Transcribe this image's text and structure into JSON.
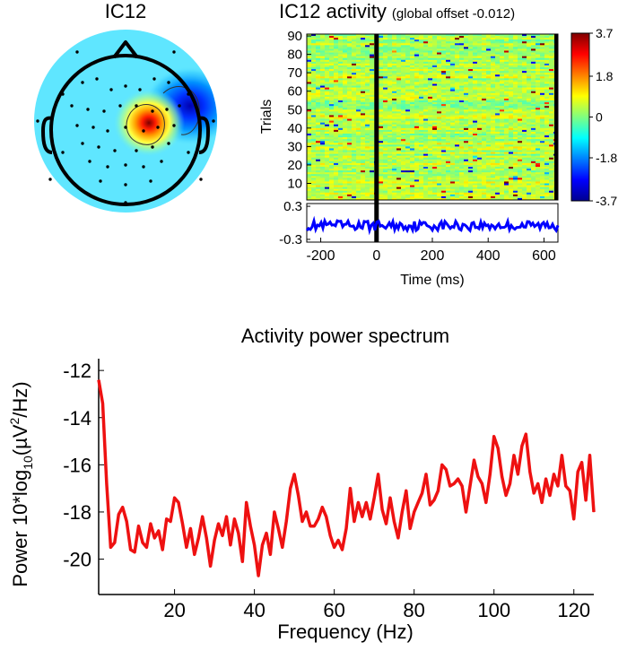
{
  "topomap": {
    "title": "IC12",
    "colormap": "jet"
  },
  "erpimage": {
    "title": "IC12 activity",
    "subtitle": "(global offset -0.012)",
    "ylabel": "Trials",
    "xlabel": "Time (ms)",
    "xlim": [
      -250,
      650
    ],
    "ylim": [
      1,
      91
    ],
    "yticks": [
      "90",
      "80",
      "70",
      "60",
      "50",
      "40",
      "30",
      "20",
      "10"
    ],
    "xticks": [
      "-200",
      "0",
      "200",
      "400",
      "600"
    ],
    "colorbar_ticks": [
      "3.7",
      "1.8",
      "0",
      "-1.8",
      "-3.7"
    ],
    "clim": [
      -3.7,
      3.7
    ],
    "erp_ticks": [
      "0.3",
      "-0.3"
    ],
    "erp_ylim": [
      -0.35,
      0.35
    ],
    "event_time": 0
  },
  "chart_data": {
    "type": "line",
    "title": "Activity power spectrum",
    "xlabel": "Frequency (Hz)",
    "ylabel_prefix": "Power 10*log",
    "ylabel_sub": "10",
    "ylabel_mid": "(µV",
    "ylabel_sup": "2",
    "ylabel_suffix": "/Hz)",
    "xlim": [
      1,
      125
    ],
    "ylim": [
      -21.5,
      -11.5
    ],
    "xticks": [
      "20",
      "40",
      "60",
      "80",
      "100",
      "120"
    ],
    "yticks": [
      "-12",
      "-14",
      "-16",
      "-18",
      "-20"
    ],
    "line_color": "#ee1111",
    "series": [
      {
        "x": [
          1,
          2,
          3,
          4,
          5,
          6,
          7,
          8,
          9,
          10,
          11,
          12,
          13,
          14,
          15,
          16,
          17,
          18,
          19,
          20,
          21,
          22,
          23,
          24,
          25,
          26,
          27,
          28,
          29,
          30,
          31,
          32,
          33,
          34,
          35,
          36,
          37,
          38,
          39,
          40,
          41,
          42,
          43,
          44,
          45,
          46,
          47,
          48,
          49,
          50,
          51,
          52,
          53,
          54,
          55,
          56,
          57,
          58,
          59,
          60,
          61,
          62,
          63,
          64,
          65,
          66,
          67,
          68,
          69,
          70,
          71,
          72,
          73,
          74,
          75,
          76,
          77,
          78,
          79,
          80,
          81,
          82,
          83,
          84,
          85,
          86,
          87,
          88,
          89,
          90,
          91,
          92,
          93,
          94,
          95,
          96,
          97,
          98,
          99,
          100,
          101,
          102,
          103,
          104,
          105,
          106,
          107,
          108,
          109,
          110,
          111,
          112,
          113,
          114,
          115,
          116,
          117,
          118,
          119,
          120,
          121,
          122,
          123,
          124,
          125
        ],
        "values": [
          -12.4,
          -13.4,
          -16.8,
          -19.5,
          -19.3,
          -18.1,
          -17.8,
          -18.4,
          -19.6,
          -19.7,
          -18.6,
          -19.3,
          -19.5,
          -18.5,
          -19.1,
          -18.8,
          -19.6,
          -18.3,
          -18.4,
          -17.4,
          -17.6,
          -18.5,
          -19.5,
          -18.7,
          -19.8,
          -19.1,
          -18.2,
          -19.1,
          -20.3,
          -19.2,
          -18.5,
          -19.0,
          -18.2,
          -19.4,
          -18.3,
          -18.9,
          -20.1,
          -17.6,
          -18.6,
          -19.4,
          -20.7,
          -19.4,
          -18.9,
          -19.8,
          -18.0,
          -18.7,
          -19.5,
          -18.4,
          -17.0,
          -16.4,
          -17.3,
          -18.4,
          -18.0,
          -18.6,
          -18.6,
          -18.3,
          -17.8,
          -18.2,
          -19.0,
          -19.5,
          -19.2,
          -19.6,
          -18.7,
          -17.0,
          -18.4,
          -17.6,
          -18.2,
          -17.6,
          -18.3,
          -17.4,
          -16.4,
          -17.9,
          -18.5,
          -17.4,
          -18.4,
          -19.1,
          -18.0,
          -17.1,
          -18.7,
          -18.0,
          -17.6,
          -17.2,
          -16.4,
          -17.7,
          -17.5,
          -17.1,
          -16.0,
          -16.2,
          -16.9,
          -16.8,
          -16.6,
          -16.9,
          -18.0,
          -16.9,
          -15.8,
          -16.5,
          -16.8,
          -17.6,
          -16.4,
          -14.8,
          -15.3,
          -16.5,
          -17.3,
          -16.8,
          -15.6,
          -16.4,
          -15.2,
          -14.7,
          -16.3,
          -17.2,
          -16.8,
          -17.6,
          -16.6,
          -17.3,
          -16.4,
          -16.9,
          -15.6,
          -16.9,
          -17.1,
          -18.3,
          -16.3,
          -15.9,
          -17.5,
          -15.6,
          -18.0
        ]
      }
    ]
  }
}
